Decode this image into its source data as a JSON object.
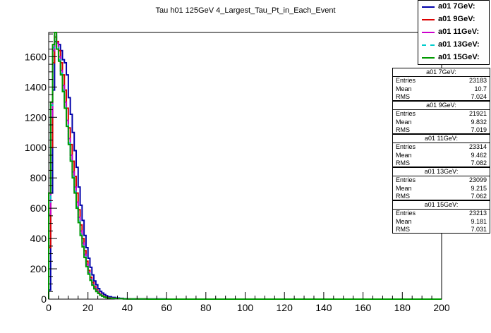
{
  "title": "Tau h01 125GeV 4_Largest_Tau_Pt_in_Each_Event",
  "colors": {
    "a01 7GeV:": "#0000aa",
    "a01 9GeV:": "#dd0000",
    "a01 11GeV:": "#cc00cc",
    "a01 13GeV:": "#00cccc",
    "a01 15GeV:": "#009900"
  },
  "legend": [
    {
      "label": "a01 7GeV:",
      "color": "#0000aa",
      "style": "solid"
    },
    {
      "label": "a01 9GeV:",
      "color": "#dd0000",
      "style": "solid"
    },
    {
      "label": "a01 11GeV:",
      "color": "#cc00cc",
      "style": "solid"
    },
    {
      "label": "a01 13GeV:",
      "color": "#00cccc",
      "style": "dashdot"
    },
    {
      "label": "a01 15GeV:",
      "color": "#009900",
      "style": "solid"
    }
  ],
  "stats": [
    {
      "title": "a01 7GeV:",
      "rows": [
        {
          "k": "Entries",
          "v": "23183"
        },
        {
          "k": "Mean",
          "v": "10.7"
        },
        {
          "k": "RMS",
          "v": "7.024"
        }
      ]
    },
    {
      "title": "a01 9GeV:",
      "rows": [
        {
          "k": "Entries",
          "v": "21921"
        },
        {
          "k": "Mean",
          "v": "9.832"
        },
        {
          "k": "RMS",
          "v": "7.019"
        }
      ]
    },
    {
      "title": "a01 11GeV:",
      "rows": [
        {
          "k": "Entries",
          "v": "23314"
        },
        {
          "k": "Mean",
          "v": "9.462"
        },
        {
          "k": "RMS",
          "v": "7.082"
        }
      ]
    },
    {
      "title": "a01 13GeV:",
      "rows": [
        {
          "k": "Entries",
          "v": "23099"
        },
        {
          "k": "Mean",
          "v": "9.215"
        },
        {
          "k": "RMS",
          "v": "7.062"
        }
      ]
    },
    {
      "title": "a01 15GeV:",
      "rows": [
        {
          "k": "Entries",
          "v": "23213"
        },
        {
          "k": "Mean",
          "v": "9.181"
        },
        {
          "k": "RMS",
          "v": "7.031"
        }
      ]
    }
  ],
  "chart_data": {
    "type": "line",
    "title": "Tau h01 125GeV 4_Largest_Tau_Pt_in_Each_Event",
    "xlabel": "",
    "ylabel": "",
    "xlim": [
      0,
      200
    ],
    "ylim": [
      0,
      1760
    ],
    "x_ticks": [
      0,
      20,
      40,
      60,
      80,
      100,
      120,
      140,
      160,
      180,
      200
    ],
    "y_ticks": [
      0,
      200,
      400,
      600,
      800,
      1000,
      1200,
      1400,
      1600
    ],
    "grid": false,
    "legend_position": "top-right",
    "series": [
      {
        "name": "a01 7GeV:",
        "color": "#0000aa",
        "bin_width": 1,
        "x_bins": [
          [
            0,
            1
          ],
          [
            1,
            2
          ],
          [
            2,
            3
          ],
          [
            3,
            4
          ],
          [
            4,
            5
          ],
          [
            5,
            6
          ],
          [
            6,
            7
          ],
          [
            7,
            8
          ],
          [
            8,
            9
          ],
          [
            9,
            10
          ],
          [
            10,
            11
          ],
          [
            11,
            12
          ],
          [
            12,
            13
          ],
          [
            13,
            14
          ],
          [
            14,
            15
          ],
          [
            15,
            16
          ],
          [
            16,
            17
          ],
          [
            17,
            18
          ],
          [
            18,
            19
          ],
          [
            19,
            20
          ],
          [
            20,
            21
          ],
          [
            21,
            22
          ],
          [
            22,
            23
          ],
          [
            23,
            24
          ],
          [
            24,
            25
          ],
          [
            25,
            26
          ],
          [
            26,
            27
          ],
          [
            27,
            28
          ],
          [
            28,
            29
          ],
          [
            29,
            30
          ],
          [
            30,
            32
          ],
          [
            32,
            34
          ],
          [
            34,
            36
          ],
          [
            36,
            38
          ],
          [
            38,
            40
          ],
          [
            40,
            45
          ],
          [
            45,
            50
          ],
          [
            50,
            60
          ],
          [
            60,
            80
          ],
          [
            80,
            100
          ],
          [
            100,
            200
          ]
        ],
        "values": [
          60,
          700,
          1380,
          1700,
          1690,
          1680,
          1640,
          1580,
          1560,
          1480,
          1330,
          1220,
          1100,
          980,
          870,
          740,
          620,
          520,
          420,
          340,
          270,
          210,
          160,
          120,
          95,
          70,
          52,
          40,
          30,
          22,
          16,
          11,
          7,
          5,
          3,
          2,
          1,
          1,
          0,
          0,
          0
        ]
      },
      {
        "name": "a01 9GeV:",
        "color": "#dd0000",
        "bin_width": 1,
        "x_bins": [
          [
            0,
            1
          ],
          [
            1,
            2
          ],
          [
            2,
            3
          ],
          [
            3,
            4
          ],
          [
            4,
            5
          ],
          [
            5,
            6
          ],
          [
            6,
            7
          ],
          [
            7,
            8
          ],
          [
            8,
            9
          ],
          [
            9,
            10
          ],
          [
            10,
            11
          ],
          [
            11,
            12
          ],
          [
            12,
            13
          ],
          [
            13,
            14
          ],
          [
            14,
            15
          ],
          [
            15,
            16
          ],
          [
            16,
            17
          ],
          [
            17,
            18
          ],
          [
            18,
            19
          ],
          [
            19,
            20
          ],
          [
            20,
            21
          ],
          [
            21,
            22
          ],
          [
            22,
            23
          ],
          [
            23,
            24
          ],
          [
            24,
            25
          ],
          [
            25,
            26
          ],
          [
            26,
            27
          ],
          [
            27,
            28
          ],
          [
            28,
            29
          ],
          [
            29,
            30
          ],
          [
            30,
            32
          ],
          [
            32,
            34
          ],
          [
            34,
            36
          ],
          [
            36,
            38
          ],
          [
            38,
            40
          ],
          [
            40,
            45
          ],
          [
            45,
            50
          ],
          [
            50,
            60
          ],
          [
            60,
            80
          ],
          [
            80,
            100
          ],
          [
            100,
            200
          ]
        ],
        "values": [
          340,
          1000,
          1560,
          1730,
          1700,
          1640,
          1560,
          1480,
          1380,
          1260,
          1130,
          1020,
          910,
          810,
          700,
          590,
          490,
          400,
          320,
          250,
          190,
          145,
          110,
          82,
          60,
          44,
          32,
          24,
          17,
          12,
          8,
          6,
          4,
          3,
          2,
          1,
          1,
          0,
          0,
          0,
          0
        ]
      },
      {
        "name": "a01 11GeV:",
        "color": "#cc00cc",
        "bin_width": 1,
        "x_bins": [
          [
            0,
            1
          ],
          [
            1,
            2
          ],
          [
            2,
            3
          ],
          [
            3,
            4
          ],
          [
            4,
            5
          ],
          [
            5,
            6
          ],
          [
            6,
            7
          ],
          [
            7,
            8
          ],
          [
            8,
            9
          ],
          [
            9,
            10
          ],
          [
            10,
            11
          ],
          [
            11,
            12
          ],
          [
            12,
            13
          ],
          [
            13,
            14
          ],
          [
            14,
            15
          ],
          [
            15,
            16
          ],
          [
            16,
            17
          ],
          [
            17,
            18
          ],
          [
            18,
            19
          ],
          [
            19,
            20
          ],
          [
            20,
            21
          ],
          [
            21,
            22
          ],
          [
            22,
            23
          ],
          [
            23,
            24
          ],
          [
            24,
            25
          ],
          [
            25,
            26
          ],
          [
            26,
            27
          ],
          [
            27,
            28
          ],
          [
            28,
            29
          ],
          [
            29,
            30
          ],
          [
            30,
            32
          ],
          [
            32,
            34
          ],
          [
            34,
            36
          ],
          [
            36,
            38
          ],
          [
            38,
            40
          ],
          [
            40,
            45
          ],
          [
            45,
            50
          ],
          [
            50,
            60
          ],
          [
            60,
            80
          ],
          [
            80,
            100
          ],
          [
            100,
            200
          ]
        ],
        "values": [
          560,
          1200,
          1640,
          1760,
          1690,
          1600,
          1510,
          1410,
          1300,
          1180,
          1060,
          950,
          840,
          740,
          640,
          540,
          450,
          370,
          295,
          230,
          176,
          132,
          98,
          73,
          54,
          40,
          29,
          21,
          15,
          11,
          8,
          5,
          4,
          3,
          2,
          1,
          1,
          0,
          0,
          0,
          0
        ]
      },
      {
        "name": "a01 13GeV:",
        "color": "#00cccc",
        "bin_width": 1,
        "x_bins": [
          [
            0,
            1
          ],
          [
            1,
            2
          ],
          [
            2,
            3
          ],
          [
            3,
            4
          ],
          [
            4,
            5
          ],
          [
            5,
            6
          ],
          [
            6,
            7
          ],
          [
            7,
            8
          ],
          [
            8,
            9
          ],
          [
            9,
            10
          ],
          [
            10,
            11
          ],
          [
            11,
            12
          ],
          [
            12,
            13
          ],
          [
            13,
            14
          ],
          [
            14,
            15
          ],
          [
            15,
            16
          ],
          [
            16,
            17
          ],
          [
            17,
            18
          ],
          [
            18,
            19
          ],
          [
            19,
            20
          ],
          [
            20,
            21
          ],
          [
            21,
            22
          ],
          [
            22,
            23
          ],
          [
            23,
            24
          ],
          [
            24,
            25
          ],
          [
            25,
            26
          ],
          [
            26,
            27
          ],
          [
            27,
            28
          ],
          [
            28,
            29
          ],
          [
            29,
            30
          ],
          [
            30,
            32
          ],
          [
            32,
            34
          ],
          [
            34,
            36
          ],
          [
            36,
            38
          ],
          [
            38,
            40
          ],
          [
            40,
            45
          ],
          [
            45,
            50
          ],
          [
            50,
            60
          ],
          [
            60,
            80
          ],
          [
            80,
            100
          ],
          [
            100,
            200
          ]
        ],
        "values": [
          640,
          1280,
          1660,
          1740,
          1660,
          1580,
          1490,
          1380,
          1270,
          1150,
          1030,
          920,
          810,
          710,
          610,
          515,
          430,
          350,
          280,
          220,
          168,
          126,
          94,
          70,
          52,
          38,
          28,
          20,
          14,
          10,
          7,
          5,
          4,
          3,
          2,
          1,
          1,
          0,
          0,
          0,
          0
        ]
      },
      {
        "name": "a01 15GeV:",
        "color": "#009900",
        "bin_width": 1,
        "x_bins": [
          [
            0,
            1
          ],
          [
            1,
            2
          ],
          [
            2,
            3
          ],
          [
            3,
            4
          ],
          [
            4,
            5
          ],
          [
            5,
            6
          ],
          [
            6,
            7
          ],
          [
            7,
            8
          ],
          [
            8,
            9
          ],
          [
            9,
            10
          ],
          [
            10,
            11
          ],
          [
            11,
            12
          ],
          [
            12,
            13
          ],
          [
            13,
            14
          ],
          [
            14,
            15
          ],
          [
            15,
            16
          ],
          [
            16,
            17
          ],
          [
            17,
            18
          ],
          [
            18,
            19
          ],
          [
            19,
            20
          ],
          [
            20,
            21
          ],
          [
            21,
            22
          ],
          [
            22,
            23
          ],
          [
            23,
            24
          ],
          [
            24,
            25
          ],
          [
            25,
            26
          ],
          [
            26,
            27
          ],
          [
            27,
            28
          ],
          [
            28,
            29
          ],
          [
            29,
            30
          ],
          [
            30,
            32
          ],
          [
            32,
            34
          ],
          [
            34,
            36
          ],
          [
            36,
            38
          ],
          [
            38,
            40
          ],
          [
            40,
            45
          ],
          [
            45,
            50
          ],
          [
            50,
            60
          ],
          [
            60,
            80
          ],
          [
            80,
            100
          ],
          [
            100,
            200
          ]
        ],
        "values": [
          700,
          1300,
          1680,
          1760,
          1650,
          1570,
          1480,
          1370,
          1260,
          1140,
          1020,
          910,
          800,
          700,
          600,
          505,
          420,
          345,
          275,
          215,
          165,
          124,
          92,
          68,
          50,
          37,
          27,
          19,
          14,
          10,
          7,
          5,
          4,
          3,
          2,
          1,
          1,
          0,
          0,
          0,
          0
        ]
      }
    ]
  }
}
